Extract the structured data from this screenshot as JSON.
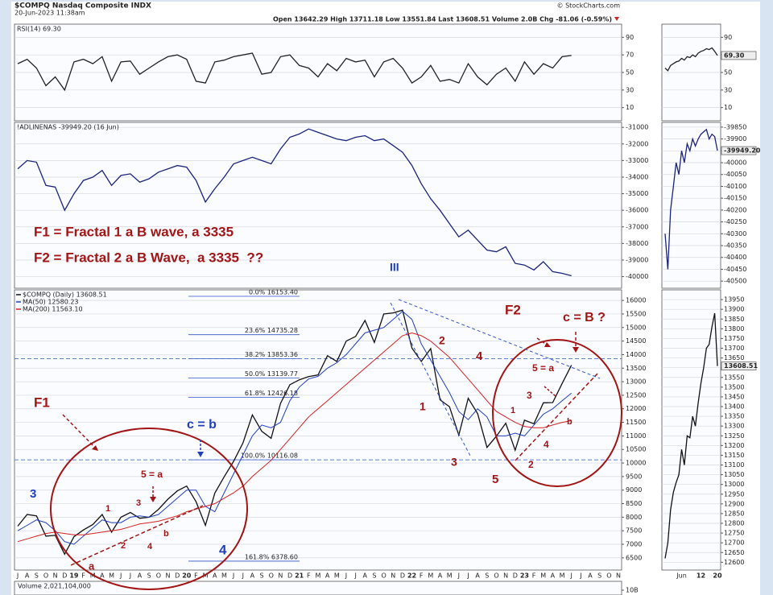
{
  "header": {
    "symbol": "$COMPQ Nasdaq Composite INDX",
    "date": "20-Jun-2023 11:38am",
    "source": "© StockCharts.com",
    "quote": "Open 13642.29 High 13711.18 Low 13551.84 Last 13608.51 Volume 2.0B Chg -81.06 (-0.59%)"
  },
  "volume": {
    "label": "Volume 2,021,104,000",
    "yticks": [
      {
        "value": 10000000000,
        "label": "10B"
      }
    ]
  },
  "chart_data": [
    {
      "type": "line",
      "title": "RSI(14) 69.30",
      "ylim": [
        -5,
        105
      ],
      "yticks": [
        10,
        30,
        50,
        70,
        90
      ],
      "grid": true,
      "series": [
        {
          "color": "#222222",
          "values": [
            60,
            65,
            55,
            35,
            45,
            30,
            62,
            65,
            60,
            68,
            40,
            62,
            63,
            48,
            55,
            62,
            68,
            70,
            65,
            40,
            38,
            62,
            64,
            68,
            70,
            72,
            48,
            50,
            68,
            70,
            58,
            55,
            45,
            60,
            52,
            66,
            62,
            64,
            45,
            62,
            66,
            55,
            38,
            45,
            58,
            40,
            42,
            38,
            60,
            45,
            36,
            48,
            55,
            40,
            62,
            48,
            60,
            55,
            68,
            69.3,
            null,
            null,
            null,
            null,
            null
          ]
        }
      ]
    },
    {
      "type": "line",
      "title": "!ADLINENAS -39949.20 (16 Jun)",
      "ylim": [
        -40700,
        -30700
      ],
      "yticks": [
        -31000,
        -32000,
        -33000,
        -34000,
        -35000,
        -36000,
        -37000,
        -38000,
        -39000,
        -40000
      ],
      "grid": true,
      "series": [
        {
          "color": "#1a237e",
          "values": [
            -33500,
            -33000,
            -33100,
            -34500,
            -34600,
            -36000,
            -35000,
            -34200,
            -34000,
            -33600,
            -34500,
            -33900,
            -33800,
            -34300,
            -34100,
            -33700,
            -33500,
            -33300,
            -33400,
            -34200,
            -35500,
            -34700,
            -34000,
            -33200,
            -33000,
            -32800,
            -33000,
            -33200,
            -32300,
            -31600,
            -31400,
            -31100,
            -31300,
            -31500,
            -31700,
            -31800,
            -31600,
            -31500,
            -31800,
            -31700,
            -32100,
            -32500,
            -33300,
            -34400,
            -35300,
            -36000,
            -36800,
            -37600,
            -37200,
            -37800,
            -38400,
            -38500,
            -38200,
            -39200,
            -39300,
            -39600,
            -39100,
            -39700,
            -39800,
            -39949.2,
            null,
            null,
            null,
            null,
            null
          ]
        }
      ]
    },
    {
      "type": "line",
      "ylim": [
        6050,
        16390
      ],
      "yticks": [
        6500,
        7000,
        7500,
        8000,
        8500,
        9000,
        9500,
        10000,
        10500,
        11000,
        11500,
        12000,
        12500,
        13000,
        13500,
        14000,
        14500,
        15000,
        15500,
        16000
      ],
      "grid": true,
      "categories": [
        "J",
        "A",
        "S",
        "O",
        "N",
        "D",
        "19",
        "F",
        "M",
        "A",
        "M",
        "J",
        "J",
        "A",
        "S",
        "O",
        "N",
        "D",
        "20",
        "F",
        "M",
        "A",
        "M",
        "J",
        "J",
        "A",
        "S",
        "O",
        "N",
        "D",
        "21",
        "F",
        "M",
        "A",
        "M",
        "J",
        "J",
        "A",
        "S",
        "O",
        "N",
        "D",
        "22",
        "F",
        "M",
        "A",
        "M",
        "J",
        "J",
        "A",
        "S",
        "O",
        "N",
        "D",
        "23",
        "F",
        "M",
        "A",
        "M",
        "J",
        "J",
        "A",
        "S",
        "O",
        "N"
      ],
      "series": [
        {
          "name": "$COMPQ (Daily) 13608.51",
          "color": "#111111",
          "values": [
            7670,
            8100,
            8050,
            7300,
            7330,
            6635,
            7280,
            7530,
            7730,
            8100,
            7450,
            8000,
            8175,
            7960,
            8000,
            8290,
            8665,
            8970,
            9150,
            8570,
            7700,
            8890,
            9490,
            10060,
            10745,
            11775,
            11170,
            10910,
            12200,
            12890,
            13070,
            13190,
            13250,
            13960,
            13750,
            14500,
            14670,
            15260,
            14450,
            15500,
            15540,
            15640,
            14240,
            13750,
            14220,
            12330,
            12080,
            11030,
            12390,
            11820,
            10575,
            10990,
            11470,
            10470,
            11580,
            11450,
            12220,
            12230,
            12935,
            13608.51,
            null,
            null,
            null,
            null,
            null
          ]
        },
        {
          "name": "MA(50) 12580.23",
          "color": "#1f3fbf",
          "values": [
            7500,
            7700,
            7900,
            7800,
            7500,
            7100,
            7000,
            7300,
            7600,
            7900,
            7800,
            7800,
            8000,
            8050,
            8000,
            8100,
            8400,
            8700,
            9000,
            9000,
            8400,
            8200,
            8900,
            9600,
            10300,
            11000,
            11400,
            11300,
            11500,
            12300,
            12800,
            13100,
            13200,
            13500,
            13700,
            14000,
            14400,
            14800,
            14900,
            15000,
            15300,
            15600,
            15300,
            14400,
            13800,
            13200,
            12600,
            11900,
            11600,
            12000,
            11700,
            11000,
            11000,
            11100,
            11000,
            11400,
            11800,
            12000,
            12300,
            12580.23,
            null,
            null,
            null,
            null,
            null
          ]
        },
        {
          "name": "MA(200) 11563.10",
          "color": "#d62020",
          "values": [
            7100,
            7200,
            7300,
            7400,
            7450,
            7400,
            7350,
            7350,
            7400,
            7450,
            7500,
            7550,
            7650,
            7750,
            7800,
            7850,
            7950,
            8050,
            8200,
            8300,
            8400,
            8500,
            8700,
            8900,
            9150,
            9500,
            9800,
            10100,
            10500,
            10900,
            11300,
            11700,
            12000,
            12300,
            12600,
            12900,
            13200,
            13500,
            13800,
            14100,
            14400,
            14700,
            14800,
            14700,
            14500,
            14200,
            13900,
            13500,
            13100,
            12700,
            12300,
            11900,
            11700,
            11500,
            11350,
            11300,
            11300,
            11400,
            11500,
            11563.1,
            null,
            null,
            null,
            null,
            null
          ]
        }
      ],
      "fib_levels": [
        {
          "value": 16153.4,
          "label": "0.0% 16153.40"
        },
        {
          "value": 14735.28,
          "label": "23.6% 14735.28"
        },
        {
          "value": 13853.36,
          "label": "38.2% 13853.36",
          "extend": true
        },
        {
          "value": 13139.77,
          "label": "50.0% 13139.77"
        },
        {
          "value": 12426.18,
          "label": "61.8% 12426.18"
        },
        {
          "value": 10116.08,
          "label": "100.0% 10116.08",
          "extend": true
        },
        {
          "value": 6378.6,
          "label": "161.8% 6378.60"
        }
      ],
      "annotations": [
        {
          "text": "F1 = Fractal 1 a B wave, a 3335",
          "color": "#a31515"
        },
        {
          "text": "F2 = Fractal 2 a B Wave,  a 3335  ??",
          "color": "#a31515"
        },
        {
          "text": "III",
          "color": "#1f3fbf"
        },
        {
          "text": "F1",
          "color": "#a31515"
        },
        {
          "text": "c = b",
          "color": "#1f3fbf"
        },
        {
          "text": "5 = a",
          "color": "#a31515"
        },
        {
          "text": "1",
          "color": "#a31515"
        },
        {
          "text": "2",
          "color": "#a31515"
        },
        {
          "text": "3",
          "color": "#a31515"
        },
        {
          "text": "4",
          "color": "#a31515"
        },
        {
          "text": "a",
          "color": "#a31515"
        },
        {
          "text": "b",
          "color": "#a31515"
        },
        {
          "text": "3",
          "color": "#1f3fbf"
        },
        {
          "text": "4",
          "color": "#1f3fbf"
        },
        {
          "text": "F2",
          "color": "#a31515"
        },
        {
          "text": "c = B ?",
          "color": "#a31515"
        },
        {
          "text": "5 = a",
          "color": "#a31515"
        },
        {
          "text": "1",
          "color": "#a31515"
        },
        {
          "text": "2",
          "color": "#a31515"
        },
        {
          "text": "3",
          "color": "#a31515"
        },
        {
          "text": "4",
          "color": "#a31515"
        },
        {
          "text": "5",
          "color": "#a31515"
        },
        {
          "text": "b",
          "color": "#a31515"
        },
        {
          "text": "1",
          "color": "#a31515"
        },
        {
          "text": "2",
          "color": "#a31515"
        },
        {
          "text": "3",
          "color": "#a31515"
        },
        {
          "text": "4",
          "color": "#a31515"
        }
      ]
    },
    {
      "type": "line",
      "ylim": [
        -5,
        105
      ],
      "yticks": [
        10,
        30,
        50,
        70,
        90
      ],
      "grid": true,
      "last_label": "69.30",
      "series": [
        {
          "color": "#222222",
          "values": [
            55,
            52,
            58,
            60,
            62,
            63,
            66,
            64,
            68,
            67,
            70,
            68,
            72,
            74,
            75,
            77,
            76,
            78,
            74,
            69.3
          ]
        }
      ]
    },
    {
      "type": "line",
      "ylim": [
        -40530,
        -39830
      ],
      "yticks": [
        -39850,
        -39900,
        -39950,
        -40000,
        -40050,
        -40100,
        -40150,
        -40200,
        -40250,
        -40300,
        -40350,
        -40400,
        -40450,
        -40500
      ],
      "grid": true,
      "last_label": "-39949.20",
      "series": [
        {
          "color": "#1a237e",
          "values": [
            -40300,
            -40450,
            -40200,
            -40100,
            -40000,
            -40050,
            -39950,
            -40000,
            -39920,
            -39950,
            -39900,
            -39930,
            -39900,
            -39880,
            -39870,
            -39860,
            -39900,
            -39880,
            -39890,
            -39949.2
          ]
        }
      ]
    },
    {
      "type": "line",
      "ylim": [
        12560,
        14000
      ],
      "yticks": [
        12600,
        12650,
        12700,
        12750,
        12800,
        12850,
        12900,
        12950,
        13000,
        13050,
        13100,
        13150,
        13200,
        13250,
        13300,
        13350,
        13400,
        13450,
        13500,
        13550,
        13600,
        13650,
        13700,
        13750,
        13800,
        13850,
        13900,
        13950
      ],
      "grid": true,
      "last_label": "13608.51",
      "categories": [
        null,
        null,
        null,
        null,
        null,
        null,
        "Jun",
        null,
        null,
        null,
        null,
        null,
        null,
        "12",
        null,
        null,
        null,
        null,
        null,
        "20"
      ],
      "series": [
        {
          "color": "#111111",
          "values": [
            12620,
            12700,
            12870,
            12960,
            13010,
            13050,
            13180,
            13100,
            13250,
            13240,
            13350,
            13300,
            13420,
            13520,
            13600,
            13700,
            13720,
            13810,
            13880,
            13608.51
          ]
        }
      ]
    }
  ]
}
